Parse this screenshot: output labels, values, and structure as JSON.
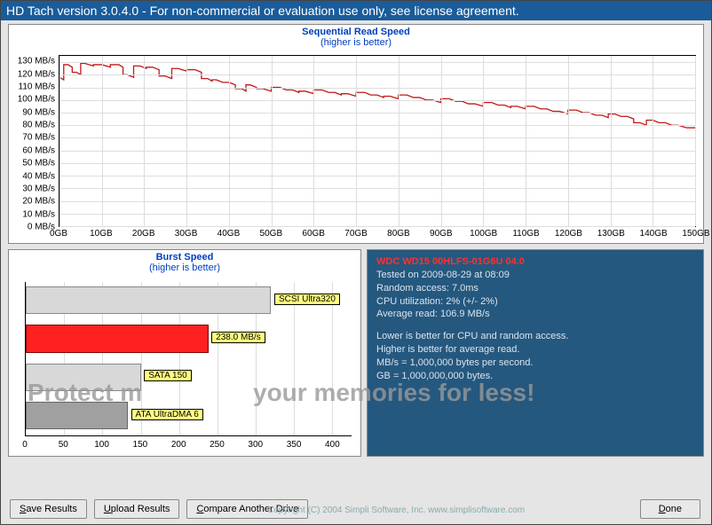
{
  "title": "HD Tach version 3.0.4.0  - For non-commercial or evaluation use only, see license agreement.",
  "seq": {
    "title": "Sequential Read Speed",
    "subtitle": "(higher is better)",
    "y_ticks": [
      0,
      10,
      20,
      30,
      40,
      50,
      60,
      70,
      80,
      90,
      100,
      110,
      120,
      130
    ],
    "y_unit": "MB/s",
    "y_max": 135,
    "x_ticks": [
      0,
      10,
      20,
      30,
      40,
      50,
      60,
      70,
      80,
      90,
      100,
      110,
      120,
      130,
      140,
      150
    ],
    "x_unit": "GB",
    "x_max": 150,
    "line_color": "#c01818",
    "grid_color": "#dddddd",
    "bg": "#ffffff",
    "series": [
      [
        0,
        118
      ],
      [
        2,
        128
      ],
      [
        4,
        122
      ],
      [
        6,
        129
      ],
      [
        10,
        128
      ],
      [
        14,
        128
      ],
      [
        16,
        120
      ],
      [
        19,
        127
      ],
      [
        22,
        126
      ],
      [
        25,
        119
      ],
      [
        28,
        125
      ],
      [
        32,
        124
      ],
      [
        35,
        117
      ],
      [
        37,
        116
      ],
      [
        40,
        114
      ],
      [
        43,
        109
      ],
      [
        45,
        112
      ],
      [
        48,
        109
      ],
      [
        52,
        110
      ],
      [
        55,
        108
      ],
      [
        58,
        107
      ],
      [
        62,
        108
      ],
      [
        65,
        106
      ],
      [
        68,
        105
      ],
      [
        72,
        106
      ],
      [
        75,
        104
      ],
      [
        78,
        103
      ],
      [
        82,
        104
      ],
      [
        85,
        102
      ],
      [
        88,
        100
      ],
      [
        92,
        101
      ],
      [
        95,
        99
      ],
      [
        98,
        97
      ],
      [
        102,
        98
      ],
      [
        105,
        96
      ],
      [
        108,
        95
      ],
      [
        112,
        95
      ],
      [
        115,
        93
      ],
      [
        118,
        91
      ],
      [
        122,
        92
      ],
      [
        125,
        90
      ],
      [
        128,
        88
      ],
      [
        131,
        89
      ],
      [
        134,
        87
      ],
      [
        137,
        82
      ],
      [
        140,
        84
      ],
      [
        143,
        82
      ],
      [
        146,
        80
      ],
      [
        150,
        78
      ]
    ]
  },
  "burst": {
    "title": "Burst Speed",
    "subtitle": "(higher is better)",
    "x_ticks": [
      0,
      50,
      100,
      150,
      200,
      250,
      300,
      350,
      400
    ],
    "x_max": 425,
    "grid_color": "#dddddd",
    "bars": [
      {
        "label": "SCSI Ultra320",
        "value": 320,
        "color": "#d8d8d8",
        "border": "#888888"
      },
      {
        "label": "238.0 MB/s",
        "value": 238,
        "color": "#ff2020",
        "border": "#800000"
      },
      {
        "label": "SATA 150",
        "value": 150,
        "color": "#d8d8d8",
        "border": "#888888"
      },
      {
        "label": "ATA UltraDMA 6",
        "value": 133,
        "color": "#a0a0a0",
        "border": "#666666"
      }
    ]
  },
  "info": {
    "drive": "WDC WD15 00HLFS-01G6U 04.0",
    "tested": "Tested on 2009-08-29 at 08:09",
    "random": "Random access: 7.0ms",
    "cpu": "CPU utilization: 2% (+/- 2%)",
    "avg": "Average read: 106.9 MB/s",
    "note1": "Lower is better for CPU and random access.",
    "note2": "Higher is better for average read.",
    "note3": "MB/s = 1,000,000 bytes per second.",
    "note4": "GB = 1,000,000,000 bytes.",
    "panel_bg": "#25587e",
    "panel_fg": "#d8e4ee",
    "drive_color": "#ff3030"
  },
  "buttons": {
    "save": "Save Results",
    "upload": "Upload Results",
    "compare": "Compare Another Drive",
    "done": "Done"
  },
  "copyright": "Copyright (C) 2004 Simpli Software, Inc. www.simplisoftware.com",
  "watermark": {
    "left": "Protect m",
    "right": "your memories for less!",
    "color": "#a8a8a8"
  }
}
